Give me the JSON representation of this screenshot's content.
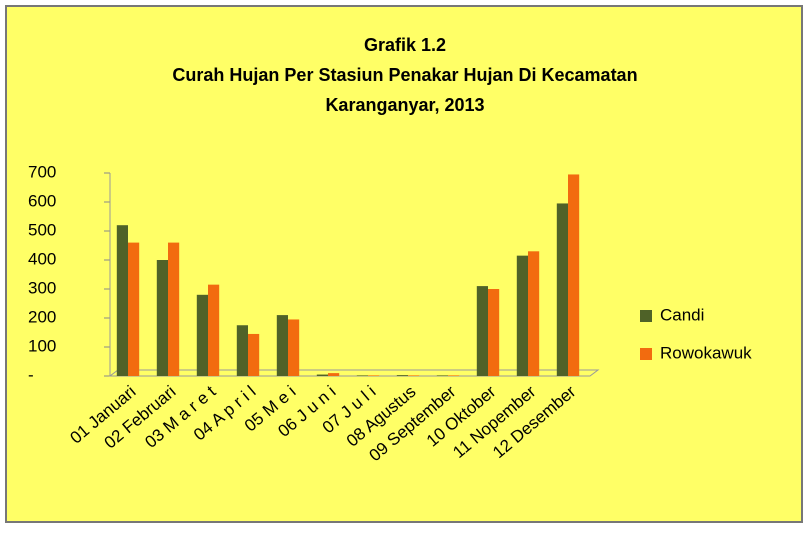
{
  "chart_data": {
    "type": "bar",
    "title": [
      "Grafik 1.2",
      "Curah Hujan Per Stasiun Penakar Hujan Di Kecamatan",
      "Karanganyar, 2013"
    ],
    "categories": [
      "01 Januari",
      "02 Februari",
      "03 M a r e t",
      "04 A p r i l",
      "05 M e i",
      "06 J u n i",
      "07 J u l i",
      "08 Agustus",
      "09 September",
      "10 Oktober",
      "11 Nopember",
      "12 Desember"
    ],
    "series": [
      {
        "name": "Candi",
        "color": "#4f6228",
        "values": [
          520,
          400,
          280,
          175,
          210,
          5,
          2,
          3,
          2,
          310,
          415,
          595
        ]
      },
      {
        "name": "Rowokawuk",
        "color": "#f26b0f",
        "values": [
          460,
          460,
          315,
          145,
          195,
          10,
          2,
          2,
          2,
          300,
          430,
          695
        ]
      }
    ],
    "ylim": [
      0,
      700
    ],
    "yticks": [
      {
        "value": 0,
        "label": "-"
      },
      100,
      200,
      300,
      400,
      500,
      600,
      700
    ],
    "grid": false,
    "legend": "right"
  }
}
